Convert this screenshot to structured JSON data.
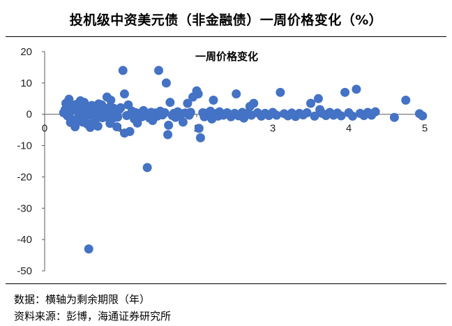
{
  "figure": {
    "title": "投机级中资美元债（非金融债）一周价格变化（%）",
    "note": "数据：横轴为剩余期限（年）",
    "source": "资料来源：彭博，海通证券研究所"
  },
  "colors": {
    "point": "#4472C4",
    "axis": "#595959"
  },
  "chart_data": {
    "type": "scatter",
    "title": "一周价格变化",
    "xlabel": "",
    "ylabel": "",
    "xlim": [
      0,
      5
    ],
    "ylim": [
      -50,
      20
    ],
    "xticks": [
      "0",
      "1",
      "2",
      "3",
      "4",
      "5"
    ],
    "yticks": [
      "20",
      "10",
      "0",
      "-10",
      "-20",
      "-30",
      "-40",
      "-50"
    ],
    "grid": false,
    "legend": "none",
    "series": [
      {
        "points": [
          [
            0.25,
            0.5
          ],
          [
            0.28,
            3.5
          ],
          [
            0.3,
            -0.5
          ],
          [
            0.32,
            4.8
          ],
          [
            0.35,
            1.2
          ],
          [
            0.38,
            -1.8
          ],
          [
            0.4,
            -4.0
          ],
          [
            0.42,
            2.0
          ],
          [
            0.45,
            0.3
          ],
          [
            0.47,
            4.3
          ],
          [
            0.5,
            -2.5
          ],
          [
            0.52,
            3.8
          ],
          [
            0.55,
            1.0
          ],
          [
            0.57,
            -0.3
          ],
          [
            0.6,
            -4.2
          ],
          [
            0.62,
            2.8
          ],
          [
            0.65,
            0.2
          ],
          [
            0.67,
            -1.5
          ],
          [
            0.7,
            -3.8
          ],
          [
            0.72,
            1.8
          ],
          [
            0.75,
            3.0
          ],
          [
            0.78,
            0.5
          ],
          [
            0.8,
            -0.8
          ],
          [
            0.82,
            5.5
          ],
          [
            0.85,
            2.2
          ],
          [
            0.87,
            4.5
          ],
          [
            0.9,
            -1.2
          ],
          [
            0.92,
            0.8
          ],
          [
            0.95,
            -4.0
          ],
          [
            0.98,
            1.5
          ],
          [
            0.3,
            0.0
          ],
          [
            0.33,
            -1.0
          ],
          [
            0.36,
            2.5
          ],
          [
            0.44,
            -2.2
          ],
          [
            0.48,
            0.9
          ],
          [
            0.53,
            -0.5
          ],
          [
            0.58,
            1.8
          ],
          [
            0.63,
            -2.8
          ],
          [
            0.68,
            0.4
          ],
          [
            0.73,
            -0.6
          ],
          [
            0.58,
            -43.0
          ],
          [
            1.03,
            14.0
          ],
          [
            1.5,
            14.0
          ],
          [
            1.35,
            -17.0
          ],
          [
            1.6,
            10.0
          ],
          [
            1.05,
            6.5
          ],
          [
            1.1,
            3.0
          ],
          [
            1.12,
            -5.5
          ],
          [
            1.05,
            -6.0
          ],
          [
            1.15,
            1.0
          ],
          [
            1.18,
            -1.5
          ],
          [
            1.2,
            0.5
          ],
          [
            1.22,
            -2.8
          ],
          [
            1.25,
            0.3
          ],
          [
            1.28,
            -0.8
          ],
          [
            1.3,
            1.2
          ],
          [
            1.32,
            -0.3
          ],
          [
            1.35,
            0.0
          ],
          [
            1.38,
            -1.2
          ],
          [
            1.4,
            0.6
          ],
          [
            1.42,
            -2.0
          ],
          [
            1.45,
            0.4
          ],
          [
            1.48,
            -0.6
          ],
          [
            1.52,
            1.0
          ],
          [
            1.55,
            -0.2
          ],
          [
            1.58,
            0.5
          ],
          [
            1.62,
            -6.5
          ],
          [
            1.63,
            -3.5
          ],
          [
            1.65,
            3.8
          ],
          [
            1.68,
            -0.4
          ],
          [
            1.7,
            0.3
          ],
          [
            1.72,
            -1.0
          ],
          [
            1.75,
            0.8
          ],
          [
            1.78,
            -0.5
          ],
          [
            1.8,
            0.2
          ],
          [
            1.82,
            -2.5
          ],
          [
            1.85,
            0.4
          ],
          [
            1.88,
            3.5
          ],
          [
            1.9,
            -0.3
          ],
          [
            1.92,
            0.6
          ],
          [
            1.95,
            5.5
          ],
          [
            2.0,
            7.5
          ],
          [
            2.02,
            6.5
          ],
          [
            2.03,
            -4.5
          ],
          [
            2.05,
            -7.5
          ],
          [
            2.08,
            0.5
          ],
          [
            2.1,
            -0.8
          ],
          [
            2.12,
            0.3
          ],
          [
            2.15,
            -0.4
          ],
          [
            2.18,
            1.0
          ],
          [
            2.2,
            -1.5
          ],
          [
            2.22,
            4.5
          ],
          [
            2.25,
            0.2
          ],
          [
            2.28,
            -0.6
          ],
          [
            2.3,
            0.8
          ],
          [
            2.35,
            -0.3
          ],
          [
            2.4,
            0.5
          ],
          [
            2.45,
            -0.8
          ],
          [
            2.5,
            0.3
          ],
          [
            2.52,
            6.5
          ],
          [
            2.55,
            -0.5
          ],
          [
            2.6,
            0.6
          ],
          [
            2.62,
            -1.2
          ],
          [
            2.65,
            0.2
          ],
          [
            2.7,
            2.5
          ],
          [
            2.72,
            -0.3
          ],
          [
            2.75,
            3.5
          ],
          [
            2.8,
            0.5
          ],
          [
            2.85,
            -0.6
          ],
          [
            2.9,
            0.3
          ],
          [
            2.95,
            -0.4
          ],
          [
            3.0,
            0.6
          ],
          [
            3.05,
            -0.3
          ],
          [
            3.1,
            7.0
          ],
          [
            3.15,
            0.2
          ],
          [
            3.2,
            -0.5
          ],
          [
            3.25,
            0.4
          ],
          [
            3.3,
            -0.7
          ],
          [
            3.35,
            0.3
          ],
          [
            3.4,
            -0.2
          ],
          [
            3.45,
            0.5
          ],
          [
            3.5,
            3.5
          ],
          [
            3.55,
            -0.6
          ],
          [
            3.6,
            5.0
          ],
          [
            3.62,
            1.5
          ],
          [
            3.65,
            0.3
          ],
          [
            3.7,
            -0.4
          ],
          [
            3.75,
            0.6
          ],
          [
            3.8,
            -0.3
          ],
          [
            3.85,
            0.4
          ],
          [
            3.9,
            -0.5
          ],
          [
            3.95,
            7.0
          ],
          [
            4.0,
            0.5
          ],
          [
            4.05,
            -0.6
          ],
          [
            4.1,
            8.0
          ],
          [
            4.15,
            0.3
          ],
          [
            4.2,
            -0.4
          ],
          [
            4.25,
            0.6
          ],
          [
            4.3,
            -0.3
          ],
          [
            4.35,
            0.8
          ],
          [
            4.6,
            -1.0
          ],
          [
            4.75,
            4.5
          ],
          [
            4.93,
            0.2
          ],
          [
            4.97,
            -0.5
          ],
          [
            0.27,
            1.5
          ],
          [
            0.34,
            -2.6
          ],
          [
            0.41,
            3.1
          ],
          [
            0.46,
            -1.4
          ],
          [
            0.51,
            2.4
          ],
          [
            0.56,
            -3.1
          ],
          [
            0.61,
            1.1
          ],
          [
            0.66,
            -2.1
          ],
          [
            0.71,
            3.3
          ],
          [
            0.76,
            -1.1
          ],
          [
            0.81,
            0.7
          ],
          [
            0.86,
            -2.9
          ],
          [
            0.91,
            1.9
          ],
          [
            0.96,
            -0.9
          ],
          [
            1.0,
            2.1
          ],
          [
            1.08,
            -0.4
          ]
        ]
      }
    ]
  }
}
